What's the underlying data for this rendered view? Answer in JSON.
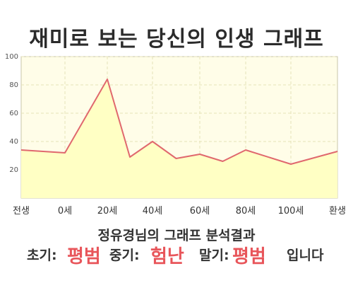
{
  "title": "재미로 보는 당신의 인생 그래프",
  "chart_data": {
    "type": "area",
    "x_labels": [
      "전생",
      "0세",
      "20세",
      "40세",
      "60세",
      "80세",
      "100세",
      "환생"
    ],
    "y_ticks": [
      20,
      40,
      60,
      80,
      100
    ],
    "ylim": [
      0,
      100
    ],
    "grid": true,
    "points": [
      {
        "x": "전생",
        "y": 34
      },
      {
        "x": "",
        "y": 33
      },
      {
        "x": "0세",
        "y": 32
      },
      {
        "x": "20세",
        "y": 84
      },
      {
        "x": "",
        "y": 29
      },
      {
        "x": "40세",
        "y": 40
      },
      {
        "x": "",
        "y": 28
      },
      {
        "x": "60세",
        "y": 31
      },
      {
        "x": "",
        "y": 26
      },
      {
        "x": "80세",
        "y": 34
      },
      {
        "x": "100세",
        "y": 24
      },
      {
        "x": "환생",
        "y": 33
      }
    ],
    "colors": {
      "line": "#e0686e",
      "fill": "#ffffc4",
      "plot_bg": "#fffde8",
      "grid": "#e6e2b8"
    }
  },
  "result": {
    "heading": "정유경님의 그래프 분석결과",
    "early_label": "초기:",
    "early_value": "평범",
    "middle_label": "중기:",
    "middle_value": "험난",
    "late_label": "말기:",
    "late_value": "평범",
    "ending": "입니다"
  }
}
